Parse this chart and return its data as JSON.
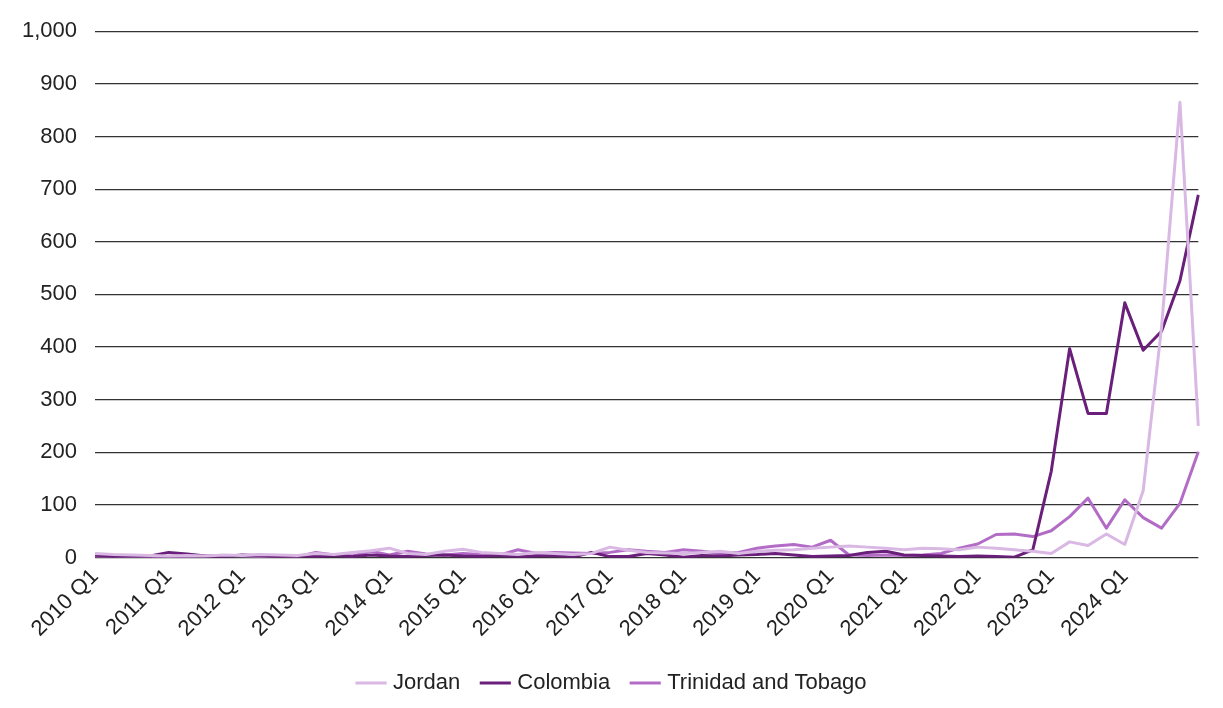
{
  "chart_data": {
    "type": "line",
    "categories": [
      "2010 Q1",
      null,
      null,
      null,
      "2011 Q1",
      null,
      null,
      null,
      "2012 Q1",
      null,
      null,
      null,
      "2013 Q1",
      null,
      null,
      null,
      "2014 Q1",
      null,
      null,
      null,
      "2015 Q1",
      null,
      null,
      null,
      "2016 Q1",
      null,
      null,
      null,
      "2017 Q1",
      null,
      null,
      null,
      "2018 Q1",
      null,
      null,
      null,
      "2019 Q1",
      null,
      null,
      null,
      "2020 Q1",
      null,
      null,
      null,
      "2021 Q1",
      null,
      null,
      null,
      "2022 Q1",
      null,
      null,
      null,
      "2023 Q1",
      null,
      null,
      null,
      "2024 Q1",
      null,
      null,
      null,
      null
    ],
    "series": [
      {
        "name": "Jordan",
        "color": "#d9b8e3",
        "values": [
          8,
          6,
          5,
          4,
          3,
          4,
          3,
          5,
          4,
          6,
          5,
          4,
          8,
          6,
          10,
          13,
          18,
          8,
          6,
          12,
          16,
          10,
          8,
          6,
          10,
          8,
          6,
          8,
          20,
          14,
          10,
          9,
          8,
          10,
          12,
          8,
          12,
          14,
          15,
          18,
          20,
          22,
          20,
          18,
          15,
          18,
          17,
          15,
          20,
          18,
          15,
          12,
          8,
          30,
          23,
          45,
          25,
          127,
          438,
          865,
          250
        ]
      },
      {
        "name": "Colombia",
        "color": "#6a1f7a",
        "values": [
          5,
          2,
          4,
          3,
          10,
          7,
          3,
          2,
          5,
          4,
          2,
          3,
          2,
          4,
          2,
          5,
          3,
          2,
          4,
          5,
          3,
          2,
          4,
          2,
          3,
          4,
          1,
          10,
          2,
          2,
          8,
          5,
          1,
          4,
          3,
          5,
          6,
          8,
          5,
          2,
          3,
          4,
          10,
          12,
          5,
          4,
          3,
          2,
          3,
          2,
          1,
          15,
          164,
          397,
          274,
          274,
          484,
          394,
          430,
          526,
          689
        ]
      },
      {
        "name": "Trinidad and Tobago",
        "color": "#b36cc6",
        "values": [
          3,
          2,
          3,
          2,
          1,
          2,
          3,
          4,
          3,
          2,
          3,
          2,
          10,
          5,
          3,
          12,
          5,
          12,
          7,
          5,
          8,
          6,
          5,
          15,
          8,
          10,
          9,
          8,
          10,
          15,
          12,
          10,
          15,
          12,
          8,
          10,
          18,
          22,
          25,
          20,
          33,
          5,
          4,
          5,
          4,
          5,
          8,
          18,
          26,
          44,
          45,
          40,
          51,
          78,
          113,
          56,
          110,
          76,
          56,
          103,
          201
        ]
      }
    ],
    "ylim": [
      0,
      1000
    ],
    "yticks": [
      0,
      100,
      200,
      300,
      400,
      500,
      600,
      700,
      800,
      900,
      {
        "value": 1000,
        "label": "1,000"
      }
    ],
    "grid": "y",
    "legend": "bottom",
    "marker": "none",
    "line_style": "solid"
  }
}
